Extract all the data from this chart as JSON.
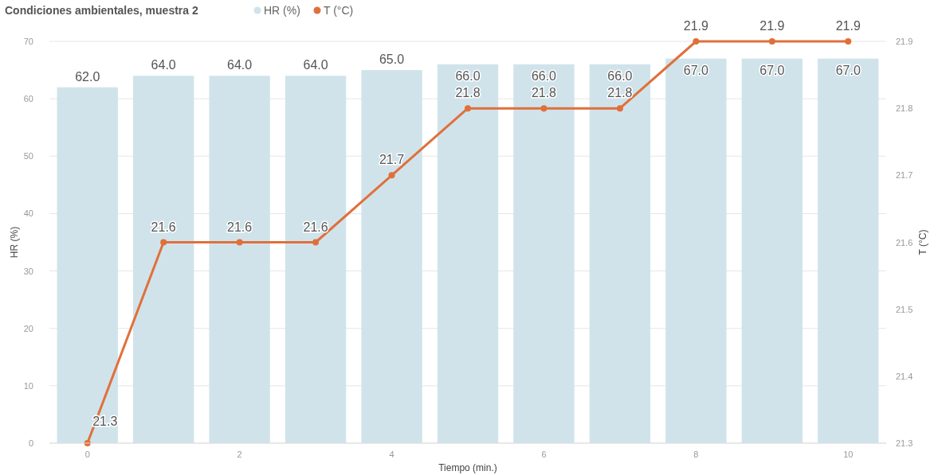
{
  "chart_data": {
    "type": "bar",
    "title": "Condiciones ambientales, muestra 2",
    "xlabel": "Tiempo (min.)",
    "ylabel": "HR (%)",
    "y2label": "T (°C)",
    "x": [
      0,
      1,
      2,
      3,
      4,
      5,
      6,
      7,
      8,
      9,
      10
    ],
    "xlim": [
      -0.5,
      10.5
    ],
    "xticks": [
      0,
      2,
      4,
      6,
      8,
      10
    ],
    "ylim": [
      0,
      70
    ],
    "yticks": [
      0,
      10,
      20,
      30,
      40,
      50,
      60,
      70
    ],
    "y2lim": [
      21.3,
      21.9
    ],
    "y2ticks": [
      21.3,
      21.4,
      21.5,
      21.6,
      21.7,
      21.8,
      21.9
    ],
    "series": [
      {
        "name": "HR (%)",
        "color": "#d0e3eb",
        "value_labels": [
          "62.0",
          "64.0",
          "64.0",
          "64.0",
          "65.0",
          "66.0",
          "66.0",
          "66.0",
          "67.0",
          "67.0",
          "67.0"
        ],
        "values": [
          62,
          64,
          64,
          64,
          65,
          66,
          66,
          66,
          67,
          67,
          67
        ]
      },
      {
        "name": "T (°C)",
        "type": "line",
        "axis": "y2",
        "color": "#e0703a",
        "value_labels": [
          "21.3",
          "21.6",
          "21.6",
          "21.6",
          "21.7",
          "21.8",
          "21.8",
          "21.8",
          "21.9",
          "21.9",
          "21.9"
        ],
        "values": [
          21.3,
          21.6,
          21.6,
          21.6,
          21.7,
          21.8,
          21.8,
          21.8,
          21.9,
          21.9,
          21.9
        ]
      }
    ],
    "grid": "y",
    "legend": "top left",
    "marker": "circle"
  }
}
